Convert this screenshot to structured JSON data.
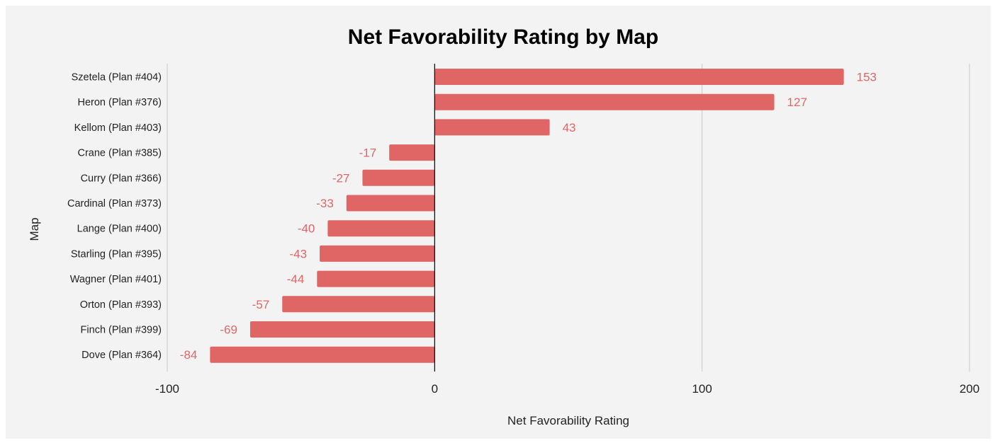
{
  "chart_data": {
    "type": "bar",
    "orientation": "horizontal",
    "title": "Net Favorability Rating by Map",
    "xlabel": "Net Favorability Rating",
    "ylabel": "Map",
    "xlim": [
      -100,
      200
    ],
    "xticks": [
      -100,
      0,
      100,
      200
    ],
    "xtick_labels": [
      "-100",
      "0",
      "100",
      "200"
    ],
    "grid": true,
    "bar_color": "#e06666",
    "label_color": "#e06666",
    "categories": [
      "Szetela (Plan #404)",
      "Heron (Plan #376)",
      "Kellom (Plan #403)",
      "Crane (Plan #385)",
      "Curry (Plan #366)",
      "Cardinal (Plan #373)",
      "Lange (Plan #400)",
      "Starling (Plan #395)",
      "Wagner (Plan #401)",
      "Orton (Plan #393)",
      "Finch (Plan #399)",
      "Dove (Plan #364)"
    ],
    "values": [
      153,
      127,
      43,
      -17,
      -27,
      -33,
      -40,
      -43,
      -44,
      -57,
      -69,
      -84
    ],
    "data_labels": [
      "153",
      "127",
      "43",
      "-17",
      "-27",
      "-33",
      "-40",
      "-43",
      "-44",
      "-57",
      "-69",
      "-84"
    ]
  }
}
